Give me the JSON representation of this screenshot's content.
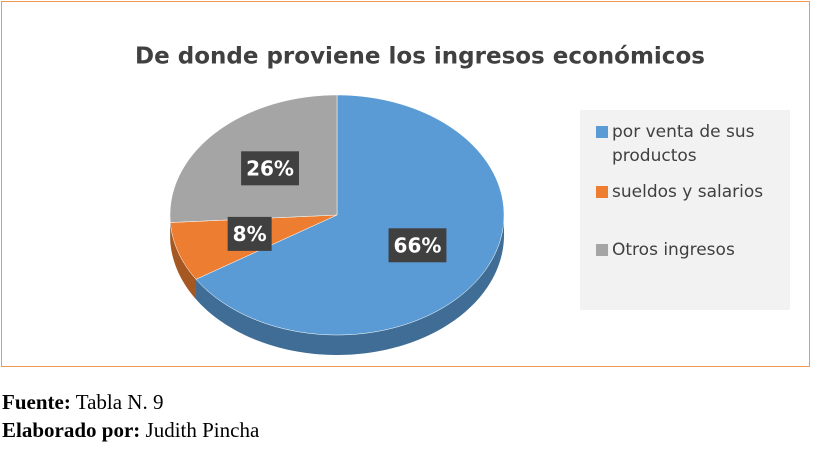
{
  "chart_data": {
    "type": "pie",
    "title": "De donde proviene los ingresos económicos",
    "categories": [
      "por venta de sus productos",
      "sueldos y salarios",
      "Otros ingresos"
    ],
    "values": [
      66,
      8,
      26
    ],
    "value_labels": [
      "66%",
      "8%",
      "26%"
    ],
    "colors": [
      "#5b9bd5",
      "#ed7d31",
      "#a5a5a5"
    ],
    "legend": "right"
  },
  "source": {
    "label": "Fuente:",
    "text": "Tabla N. 9"
  },
  "author": {
    "label": "Elaborado por:",
    "text": "Judith Pincha"
  }
}
